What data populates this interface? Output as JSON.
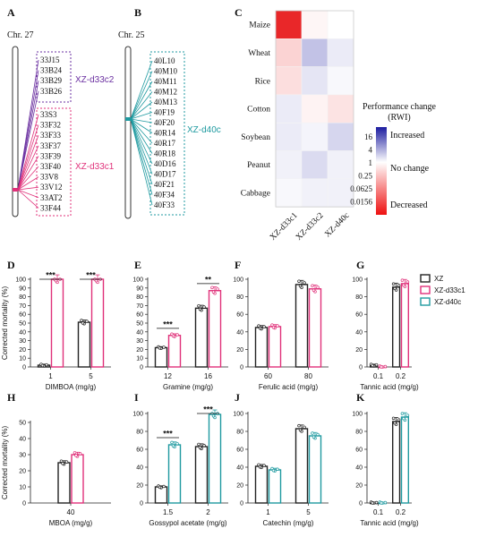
{
  "colors": {
    "xz": "#222222",
    "c1": "#e0317a",
    "c2": "#6a2fa0",
    "d40": "#1f9aa0",
    "heat_high": "#2a2aa8",
    "heat_low": "#e8191b"
  },
  "panel_letters": [
    "A",
    "B",
    "C",
    "D",
    "E",
    "F",
    "G",
    "H",
    "I",
    "J",
    "K"
  ],
  "panelA": {
    "chrom": "Chr. 27",
    "c2_genes": [
      "33J15",
      "33B24",
      "33B29",
      "33B26"
    ],
    "c2_name": "XZ-d33c2",
    "c1_genes": [
      "33S3",
      "33F32",
      "33F33",
      "33F37",
      "33F39",
      "33F40",
      "33V8",
      "33V12",
      "33AT2",
      "33F44"
    ],
    "c1_name": "XZ-d33c1"
  },
  "panelB": {
    "chrom": "Chr. 25",
    "genes": [
      "40L10",
      "40M10",
      "40M11",
      "40M12",
      "40M13",
      "40F19",
      "40F20",
      "40R14",
      "40R17",
      "40R18",
      "40D16",
      "40D17",
      "40F21",
      "40F34",
      "40F33"
    ],
    "name": "XZ-d40c"
  },
  "legend": {
    "items": [
      "XZ",
      "XZ-d33c1",
      "XZ-d40c"
    ]
  },
  "chart_data": [
    {
      "type": "heatmap",
      "rows": [
        "Maize",
        "Wheat",
        "Rice",
        "Cotton",
        "Soybean",
        "Peanut",
        "Cabbage"
      ],
      "columns": [
        "XZ-d33c1",
        "XZ-d33c2",
        "XZ-d40c"
      ],
      "values": [
        [
          0.02,
          0.85,
          1.0
        ],
        [
          0.45,
          2.2,
          1.3
        ],
        [
          0.55,
          1.4,
          1.1
        ],
        [
          1.3,
          0.8,
          0.6
        ],
        [
          1.3,
          1.15,
          1.7
        ],
        [
          1.2,
          1.6,
          1.2
        ],
        [
          1.1,
          1.2,
          1.2
        ]
      ],
      "colorbar_title": "Performance change (RWI)",
      "colorbar_ticks": [
        "16",
        "4",
        "1",
        "0.25",
        "0.0625",
        "0.0156"
      ],
      "colorbar_labels": [
        "Increased",
        "No change",
        "Decreased"
      ]
    },
    {
      "type": "bar",
      "title": "DIMBOA (mg/g)",
      "ylabel": "Corrected mortality (%)",
      "categories": [
        "1",
        "5"
      ],
      "ylim": [
        0,
        100
      ],
      "yticks": [
        "0",
        "10",
        "20",
        "30",
        "40",
        "50",
        "60",
        "70",
        "80",
        "90",
        "100"
      ],
      "series": [
        {
          "name": "XZ",
          "values": [
            2,
            51
          ]
        },
        {
          "name": "XZ-d33c1",
          "values": [
            100,
            100
          ]
        }
      ],
      "significance": [
        "***",
        "***"
      ]
    },
    {
      "type": "bar",
      "title": "Gramine (mg/g)",
      "categories": [
        "12",
        "16"
      ],
      "ylim": [
        0,
        100
      ],
      "yticks": [
        "0",
        "10",
        "20",
        "30",
        "40",
        "50",
        "60",
        "70",
        "80",
        "90",
        "100"
      ],
      "series": [
        {
          "name": "XZ",
          "values": [
            22,
            67
          ]
        },
        {
          "name": "XZ-d33c1",
          "values": [
            36,
            87
          ]
        }
      ],
      "significance": [
        "***",
        "**"
      ]
    },
    {
      "type": "bar",
      "title": "Ferulic acid (mg/g)",
      "categories": [
        "60",
        "80"
      ],
      "ylim": [
        0,
        100
      ],
      "yticks": [
        "0",
        "20",
        "40",
        "60",
        "80",
        "100"
      ],
      "series": [
        {
          "name": "XZ",
          "values": [
            45,
            94
          ]
        },
        {
          "name": "XZ-d33c1",
          "values": [
            46,
            89
          ]
        }
      ],
      "significance": [
        "",
        ""
      ]
    },
    {
      "type": "bar",
      "title": "Tannic acid (mg/g)",
      "categories": [
        "0.1",
        "0.2"
      ],
      "ylim": [
        0,
        100
      ],
      "yticks": [
        "0",
        "20",
        "40",
        "60",
        "80",
        "100"
      ],
      "series": [
        {
          "name": "XZ",
          "values": [
            2,
            91
          ]
        },
        {
          "name": "XZ-d33c1",
          "values": [
            0,
            95
          ]
        }
      ],
      "significance": [
        "",
        ""
      ]
    },
    {
      "type": "bar",
      "title": "MBOA (mg/g)",
      "ylabel": "Corrected mortality (%)",
      "categories": [
        "40"
      ],
      "ylim": [
        0,
        50
      ],
      "yticks": [
        "0",
        "10",
        "20",
        "30",
        "40",
        "50"
      ],
      "series": [
        {
          "name": "XZ",
          "values": [
            25
          ]
        },
        {
          "name": "XZ-d33c1",
          "values": [
            30
          ]
        }
      ],
      "significance": [
        ""
      ]
    },
    {
      "type": "bar",
      "title": "Gossypol acetate (mg/g)",
      "categories": [
        "1.5",
        "2"
      ],
      "ylim": [
        0,
        100
      ],
      "yticks": [
        "0",
        "20",
        "40",
        "60",
        "80",
        "100"
      ],
      "series": [
        {
          "name": "XZ",
          "values": [
            18,
            63
          ]
        },
        {
          "name": "XZ-d40c",
          "values": [
            65,
            99
          ]
        }
      ],
      "significance": [
        "***",
        "***"
      ]
    },
    {
      "type": "bar",
      "title": "Catechin (mg/g)",
      "categories": [
        "1",
        "5"
      ],
      "ylim": [
        0,
        100
      ],
      "yticks": [
        "0",
        "20",
        "40",
        "60",
        "80",
        "100"
      ],
      "series": [
        {
          "name": "XZ",
          "values": [
            41,
            83
          ]
        },
        {
          "name": "XZ-d40c",
          "values": [
            37,
            75
          ]
        }
      ],
      "significance": [
        "",
        ""
      ]
    },
    {
      "type": "bar",
      "title": "Tannic acid (mg/g)",
      "categories": [
        "0.1",
        "0.2"
      ],
      "ylim": [
        0,
        100
      ],
      "yticks": [
        "0",
        "20",
        "40",
        "60",
        "80",
        "100"
      ],
      "series": [
        {
          "name": "XZ",
          "values": [
            0,
            91
          ]
        },
        {
          "name": "XZ-d40c",
          "values": [
            0,
            96
          ]
        }
      ],
      "significance": [
        "",
        ""
      ]
    }
  ]
}
